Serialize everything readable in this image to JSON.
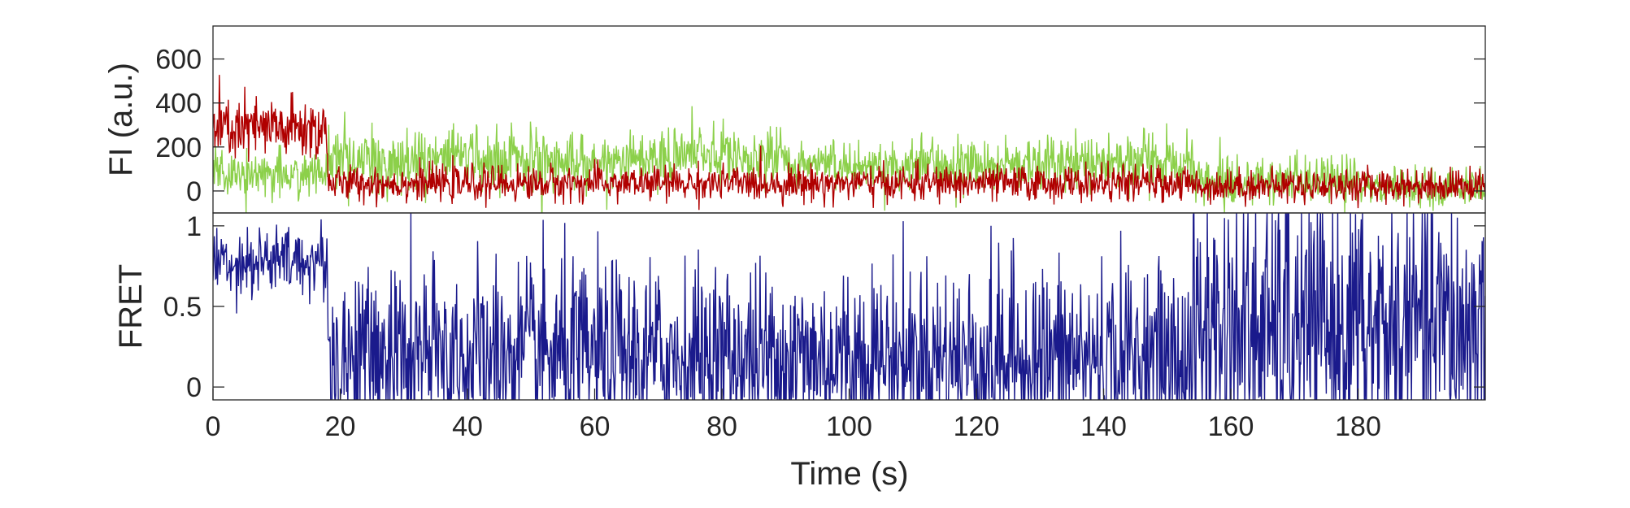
{
  "chart_data": [
    {
      "type": "line",
      "ylabel": "FI (a.u.)",
      "xlabel": "",
      "xlim": [
        0,
        200
      ],
      "ylim": [
        -100,
        750
      ],
      "yticks": [
        0,
        200,
        400,
        600
      ],
      "grid": false,
      "series": [
        {
          "color": "#8cd04a",
          "segments": [
            {
              "t0": 0,
              "t1": 18,
              "mean": 80,
              "noise": 55
            },
            {
              "t0": 18,
              "t1": 30,
              "mean": 130,
              "noise": 70
            },
            {
              "t0": 30,
              "t1": 55,
              "mean": 150,
              "noise": 70
            },
            {
              "t0": 55,
              "t1": 70,
              "mean": 135,
              "noise": 65
            },
            {
              "t0": 70,
              "t1": 90,
              "mean": 160,
              "noise": 65
            },
            {
              "t0": 90,
              "t1": 130,
              "mean": 120,
              "noise": 60
            },
            {
              "t0": 130,
              "t1": 154,
              "mean": 135,
              "noise": 65
            },
            {
              "t0": 154,
              "t1": 180,
              "mean": 45,
              "noise": 55
            },
            {
              "t0": 180,
              "t1": 200,
              "mean": 15,
              "noise": 45
            }
          ]
        },
        {
          "color": "#b00000",
          "segments": [
            {
              "t0": 0,
              "t1": 18,
              "mean": 280,
              "noise": 75
            },
            {
              "t0": 18,
              "t1": 154,
              "mean": 35,
              "noise": 40
            },
            {
              "t0": 154,
              "t1": 200,
              "mean": 25,
              "noise": 38
            }
          ]
        }
      ]
    },
    {
      "type": "line",
      "ylabel": "FRET",
      "xlabel": "Time (s)",
      "xlim": [
        0,
        200
      ],
      "ylim": [
        -0.08,
        1.08
      ],
      "yticks": [
        0,
        0.5,
        1
      ],
      "ytick_labels": [
        "0",
        "0.5",
        "1"
      ],
      "xticks": [
        0,
        20,
        40,
        60,
        80,
        100,
        120,
        140,
        160,
        180
      ],
      "grid": false,
      "series": [
        {
          "color": "#1a1a8c",
          "segments": [
            {
              "t0": 0,
              "t1": 18,
              "mean": 0.78,
              "noise": 0.11,
              "clip": [
                0,
                1.1
              ]
            },
            {
              "t0": 18,
              "t1": 154,
              "mean": 0.18,
              "noise": 0.3,
              "clip": [
                -0.1,
                1.1
              ]
            },
            {
              "t0": 154,
              "t1": 200,
              "mean": 0.35,
              "noise": 0.45,
              "clip": [
                -0.1,
                1.1
              ]
            }
          ]
        }
      ]
    }
  ]
}
